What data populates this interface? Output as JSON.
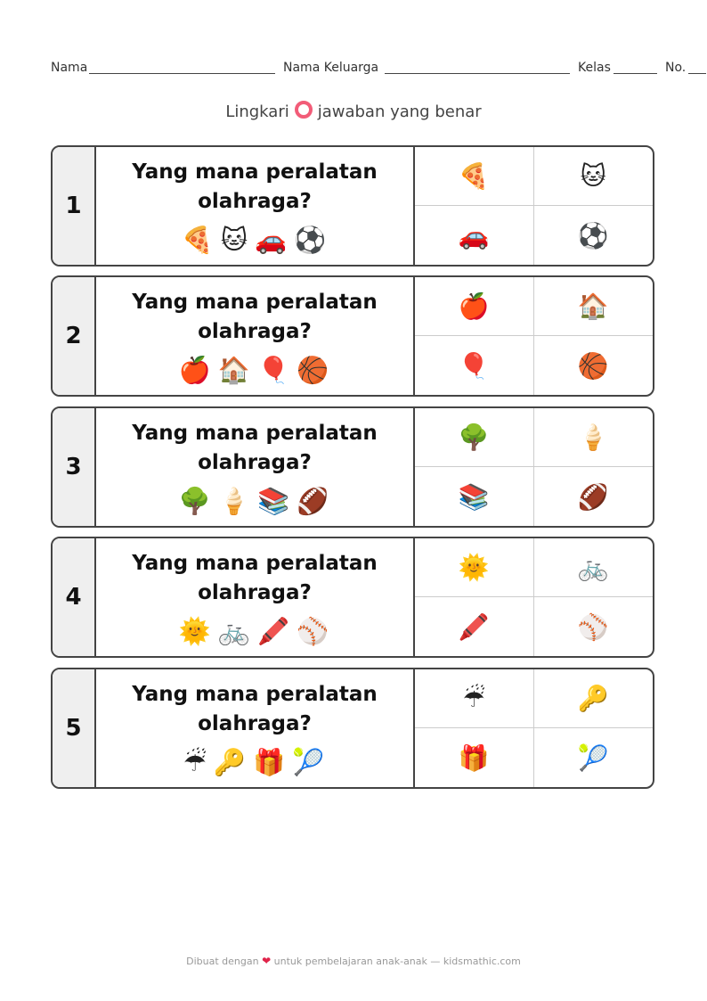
{
  "header": {
    "name_label": "Nama",
    "family_label": "Nama Keluarga",
    "class_label": "Kelas",
    "no_label": "No."
  },
  "instruction": {
    "before": "Lingkari",
    "after": "jawaban yang benar",
    "ring_color": "#f25c78"
  },
  "questions": [
    {
      "number": "1",
      "text_line1": "Yang mana peralatan",
      "text_line2": "olahraga?",
      "icons": [
        "🍕",
        "🐱",
        "🚗",
        "⚽"
      ],
      "options": [
        "🍕",
        "🐱",
        "🚗",
        "⚽"
      ]
    },
    {
      "number": "2",
      "text_line1": "Yang mana peralatan",
      "text_line2": "olahraga?",
      "icons": [
        "🍎",
        "🏠",
        "🎈",
        "🏀"
      ],
      "options": [
        "🍎",
        "🏠",
        "🎈",
        "🏀"
      ]
    },
    {
      "number": "3",
      "text_line1": "Yang mana peralatan",
      "text_line2": "olahraga?",
      "icons": [
        "🌳",
        "🍦",
        "📚",
        "🏈"
      ],
      "options": [
        "🌳",
        "🍦",
        "📚",
        "🏈"
      ]
    },
    {
      "number": "4",
      "text_line1": "Yang mana peralatan",
      "text_line2": "olahraga?",
      "icons": [
        "🌞",
        "🚲",
        "🖍️",
        "⚾"
      ],
      "options": [
        "🌞",
        "🚲",
        "🖍️",
        "⚾"
      ]
    },
    {
      "number": "5",
      "text_line1": "Yang mana peralatan",
      "text_line2": "olahraga?",
      "icons": [
        "☔",
        "🔑",
        "🎁",
        "🎾"
      ],
      "options": [
        "☔",
        "🔑",
        "🎁",
        "🎾"
      ]
    }
  ],
  "footer": {
    "before": "Dibuat dengan",
    "heart": "❤",
    "after": "untuk pembelajaran anak-anak — kidsmathic.com"
  }
}
